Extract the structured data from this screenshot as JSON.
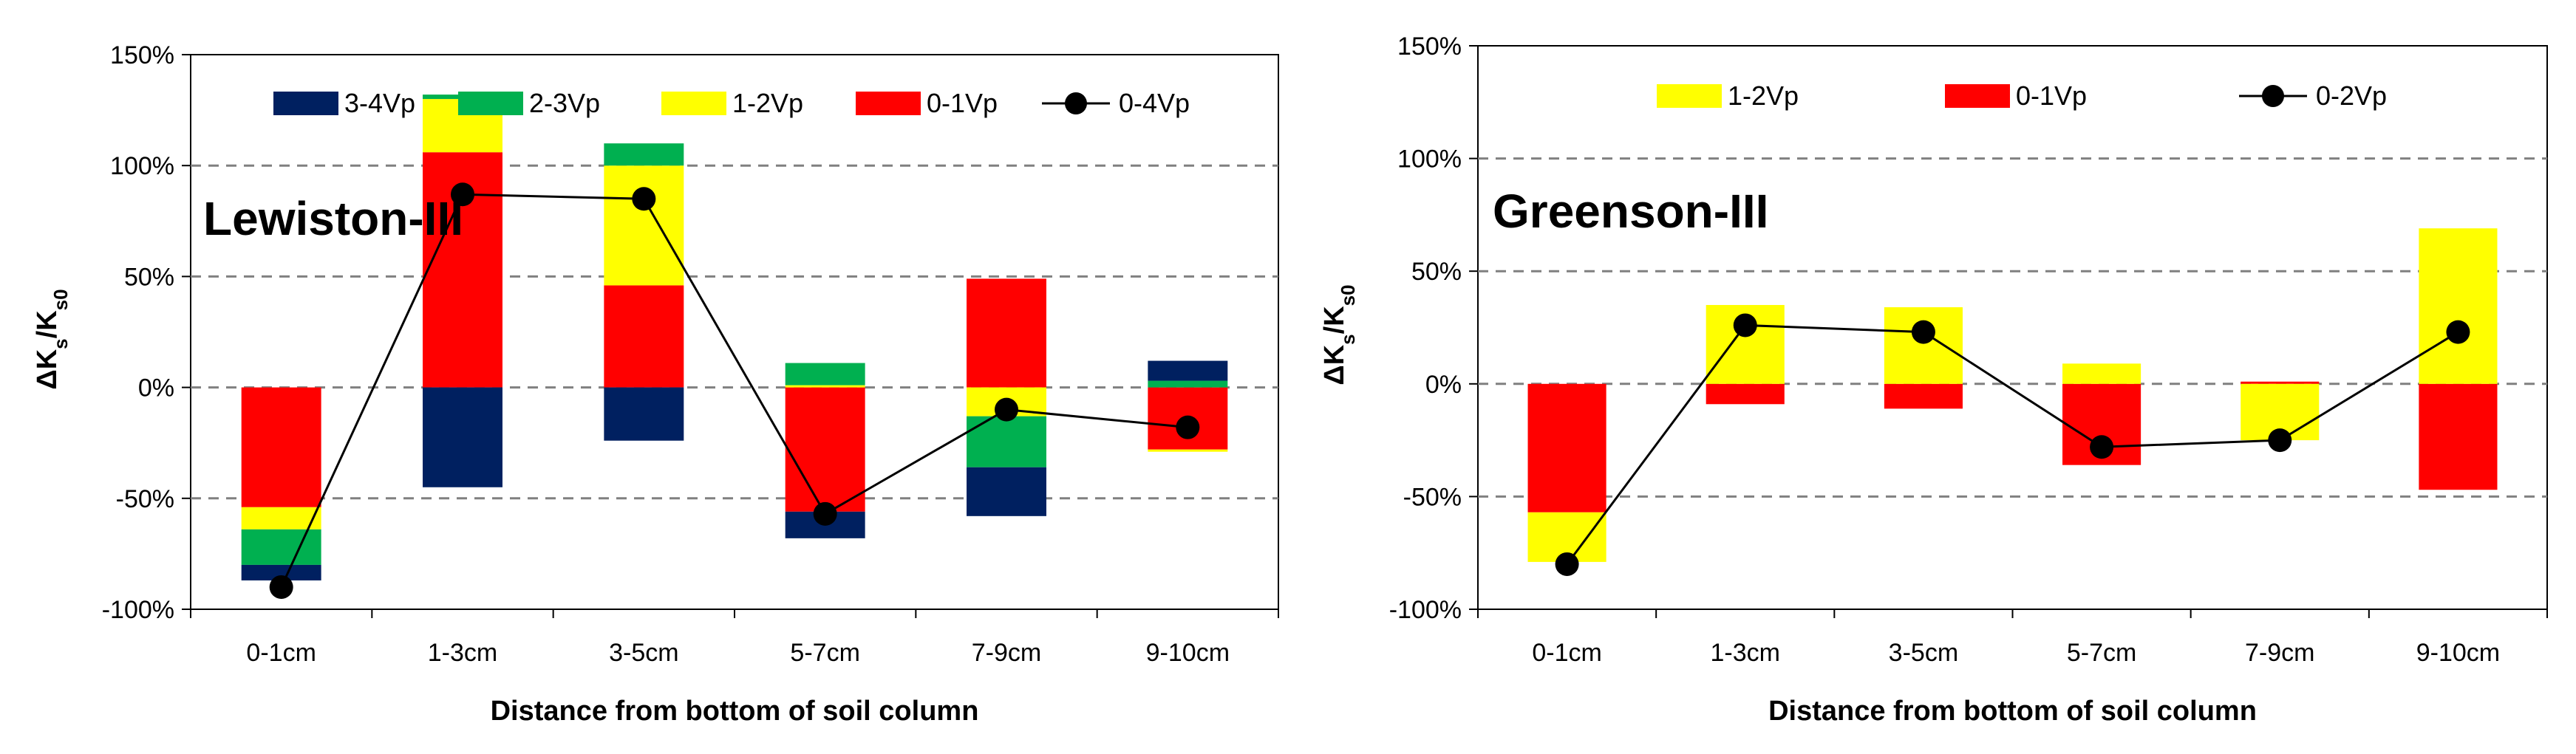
{
  "colors": {
    "3-4Vp": "#002060",
    "2-3Vp": "#00b050",
    "1-2Vp": "#ffff00",
    "0-1Vp": "#ff0000",
    "line": "#000000",
    "grid": "#808080"
  },
  "chart_data": [
    {
      "type": "bar",
      "stacked": true,
      "panel_label": "Lewiston-III",
      "xlabel": "Distance from bottom of soil column",
      "ylabel_main": "ΔK",
      "ylabel_sub1": "s",
      "ylabel_mid": "/K",
      "ylabel_sub2": "s0",
      "ylim": [
        -1.0,
        1.5
      ],
      "yticks": [
        -1.0,
        -0.5,
        0.0,
        0.5,
        1.0,
        1.5
      ],
      "ytick_labels": [
        "-100%",
        "-50%",
        "0%",
        "50%",
        "100%",
        "150%"
      ],
      "grid": "horizontal dashed",
      "legend_position": "top",
      "categories": [
        "0-1cm",
        "1-3cm",
        "3-5cm",
        "5-7cm",
        "7-9cm",
        "9-10cm"
      ],
      "series": [
        {
          "name": "0-1Vp",
          "color_key": "0-1Vp",
          "values": [
            -0.54,
            1.06,
            0.46,
            -0.56,
            0.49,
            -0.28
          ]
        },
        {
          "name": "1-2Vp",
          "color_key": "1-2Vp",
          "values": [
            -0.1,
            0.24,
            0.54,
            0.01,
            -0.13,
            -0.01
          ]
        },
        {
          "name": "2-3Vp",
          "color_key": "2-3Vp",
          "values": [
            -0.16,
            0.02,
            0.1,
            0.1,
            -0.23,
            0.03
          ]
        },
        {
          "name": "3-4Vp",
          "color_key": "3-4Vp",
          "values": [
            -0.07,
            -0.45,
            -0.24,
            -0.12,
            -0.22,
            0.09
          ]
        }
      ],
      "line_series": {
        "name": "0-4Vp",
        "values": [
          -0.9,
          0.87,
          0.85,
          -0.57,
          -0.1,
          -0.18
        ]
      },
      "legend_order": [
        "3-4Vp",
        "2-3Vp",
        "1-2Vp",
        "0-1Vp",
        "0-4Vp"
      ]
    },
    {
      "type": "bar",
      "stacked": true,
      "panel_label": "Greenson-III",
      "xlabel": "Distance from bottom of soil column",
      "ylabel_main": "ΔK",
      "ylabel_sub1": "s",
      "ylabel_mid": "/K",
      "ylabel_sub2": "s0",
      "ylim": [
        -1.0,
        1.5
      ],
      "yticks": [
        -1.0,
        -0.5,
        0.0,
        0.5,
        1.0,
        1.5
      ],
      "ytick_labels": [
        "-100%",
        "-50%",
        "0%",
        "50%",
        "100%",
        "150%"
      ],
      "grid": "horizontal dashed",
      "legend_position": "top",
      "categories": [
        "0-1cm",
        "1-3cm",
        "3-5cm",
        "5-7cm",
        "7-9cm",
        "9-10cm"
      ],
      "series": [
        {
          "name": "0-1Vp",
          "color_key": "0-1Vp",
          "values": [
            -0.57,
            -0.09,
            -0.11,
            -0.36,
            0.01,
            -0.47
          ]
        },
        {
          "name": "1-2Vp",
          "color_key": "1-2Vp",
          "values": [
            -0.22,
            0.35,
            0.34,
            0.09,
            -0.25,
            0.69
          ]
        }
      ],
      "line_series": {
        "name": "0-2Vp",
        "values": [
          -0.8,
          0.26,
          0.23,
          -0.28,
          -0.25,
          0.23
        ]
      },
      "legend_order": [
        "1-2Vp",
        "0-1Vp",
        "0-2Vp"
      ]
    }
  ]
}
